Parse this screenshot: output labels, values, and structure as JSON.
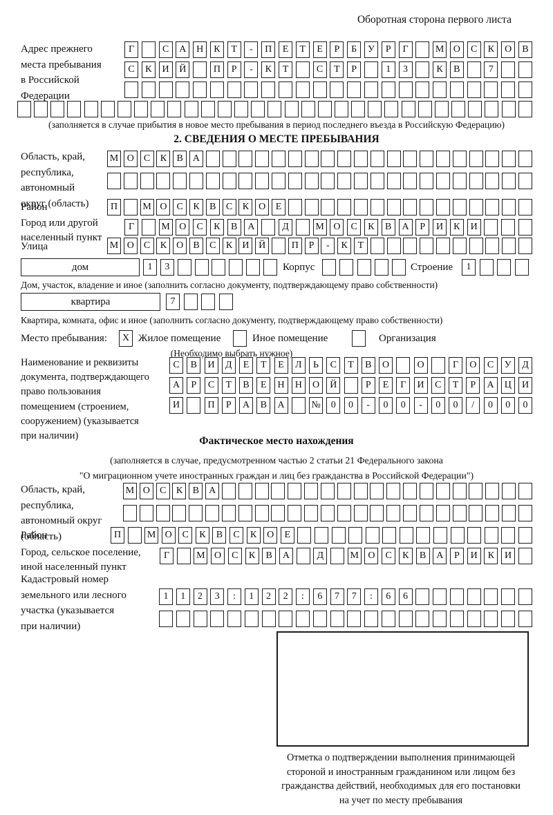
{
  "page": {
    "header_note": "Оборотная сторона первого листа"
  },
  "prev_address": {
    "label_lines": [
      "Адрес прежнего",
      "места пребывания",
      "в Российской",
      "Федерации"
    ],
    "rows": [
      [
        "Г",
        "",
        "С",
        "А",
        "Н",
        "К",
        "Т",
        "-",
        "П",
        "Е",
        "Т",
        "Е",
        "Р",
        "Б",
        "У",
        "Р",
        "Г",
        "",
        "М",
        "О",
        "С",
        "К",
        "О",
        "В"
      ],
      [
        "С",
        "К",
        "И",
        "Й",
        "",
        "П",
        "Р",
        "-",
        "К",
        "Т",
        "",
        "С",
        "Т",
        "Р",
        "",
        "1",
        "3",
        "",
        "К",
        "В",
        "",
        "7",
        "",
        ""
      ],
      [
        "",
        "",
        "",
        "",
        "",
        "",
        "",
        "",
        "",
        "",
        "",
        "",
        "",
        "",
        "",
        "",
        "",
        "",
        "",
        "",
        "",
        "",
        "",
        ""
      ]
    ],
    "full_row": [
      "",
      "",
      "",
      "",
      "",
      "",
      "",
      "",
      "",
      "",
      "",
      "",
      "",
      "",
      "",
      "",
      "",
      "",
      "",
      "",
      "",
      "",
      "",
      "",
      "",
      "",
      "",
      "",
      "",
      "",
      ""
    ],
    "note": "(заполняется в случае прибытия в новое место пребывания в период последнего въезда в Российскую Федерацию)"
  },
  "section2": {
    "title": "2. СВЕДЕНИЯ О МЕСТЕ ПРЕБЫВАНИЯ",
    "region": {
      "label_lines": [
        "Область, край,",
        "республика,",
        "автономный",
        "округ (область)"
      ],
      "rows": [
        [
          "М",
          "О",
          "С",
          "К",
          "В",
          "А",
          "",
          "",
          "",
          "",
          "",
          "",
          "",
          "",
          "",
          "",
          "",
          "",
          "",
          "",
          "",
          "",
          "",
          "",
          "",
          ""
        ],
        [
          "",
          "",
          "",
          "",
          "",
          "",
          "",
          "",
          "",
          "",
          "",
          "",
          "",
          "",
          "",
          "",
          "",
          "",
          "",
          "",
          "",
          "",
          "",
          "",
          "",
          ""
        ]
      ]
    },
    "district": {
      "label": "Район",
      "row": [
        "П",
        "",
        "М",
        "О",
        "С",
        "К",
        "В",
        "С",
        "К",
        "О",
        "Е",
        "",
        "",
        "",
        "",
        "",
        "",
        "",
        "",
        "",
        "",
        "",
        "",
        "",
        "",
        ""
      ]
    },
    "city": {
      "label_lines": [
        "Город или другой",
        "населенный пункт"
      ],
      "row": [
        "Г",
        "",
        "М",
        "О",
        "С",
        "К",
        "В",
        "А",
        "",
        "Д",
        "",
        "М",
        "О",
        "С",
        "К",
        "В",
        "А",
        "Р",
        "И",
        "К",
        "И",
        "",
        "",
        ""
      ]
    },
    "street": {
      "label": "Улица",
      "row": [
        "М",
        "О",
        "С",
        "К",
        "О",
        "В",
        "С",
        "К",
        "И",
        "Й",
        "",
        "П",
        "Р",
        "-",
        "К",
        "Т",
        "",
        "",
        "",
        "",
        "",
        "",
        "",
        "",
        "",
        ""
      ]
    },
    "house": {
      "label": "дом",
      "cells": [
        "1",
        "3",
        "",
        "",
        "",
        "",
        "",
        ""
      ],
      "korpus_label": "Корпус",
      "korpus_cells": [
        "",
        "",
        "",
        "",
        ""
      ],
      "stroenie_label": "Строение",
      "stroenie_cells": [
        "1",
        "",
        "",
        ""
      ],
      "note": "Дом, участок, владение и иное (заполнить согласно документу, подтверждающему право собственности)"
    },
    "apartment": {
      "label": "квартира",
      "cells": [
        "7",
        "",
        "",
        ""
      ],
      "note": "Квартира, комната, офис и иное (заполнить согласно документу, подтверждающему право собственности)"
    },
    "stay_type": {
      "label": "Место пребывания:",
      "options": [
        {
          "label": "Жилое помещение",
          "mark": "X"
        },
        {
          "label": "Иное помещение",
          "mark": ""
        },
        {
          "label": "Организация",
          "mark": ""
        }
      ],
      "note": "(Необходимо выбрать нужное)"
    },
    "document": {
      "label_lines": [
        "Наименование и реквизиты",
        "документа, подтверждающего",
        "право пользования",
        "помещением (строением,",
        "сооружением) (указывается",
        "при наличии)"
      ],
      "rows": [
        [
          "С",
          "В",
          "И",
          "Д",
          "Е",
          "Т",
          "Е",
          "Л",
          "Ь",
          "С",
          "Т",
          "В",
          "О",
          "",
          "О",
          "",
          "Г",
          "О",
          "С",
          "У",
          "Д"
        ],
        [
          "А",
          "Р",
          "С",
          "Т",
          "В",
          "Е",
          "Н",
          "Н",
          "О",
          "Й",
          "",
          "Р",
          "Е",
          "Г",
          "И",
          "С",
          "Т",
          "Р",
          "А",
          "Ц",
          "И"
        ],
        [
          "И",
          "",
          "П",
          "Р",
          "А",
          "В",
          "А",
          "",
          "№",
          "0",
          "0",
          "-",
          "0",
          "0",
          "-",
          "0",
          "0",
          "/",
          "0",
          "0",
          "0"
        ]
      ]
    }
  },
  "actual_location": {
    "title": "Фактическое место нахождения",
    "note_lines": [
      "(заполняется в случае, предусмотренном частью 2 статьи 21 Федерального закона",
      "\"О миграционном учете иностранных граждан и лиц без гражданства в Российской Федерации\")"
    ],
    "region": {
      "label_lines": [
        "Область, край,",
        "республика,",
        "автономный округ",
        "(область)"
      ],
      "rows": [
        [
          "М",
          "О",
          "С",
          "К",
          "В",
          "А",
          "",
          "",
          "",
          "",
          "",
          "",
          "",
          "",
          "",
          "",
          "",
          "",
          "",
          "",
          "",
          "",
          "",
          "",
          ""
        ],
        [
          "",
          "",
          "",
          "",
          "",
          "",
          "",
          "",
          "",
          "",
          "",
          "",
          "",
          "",
          "",
          "",
          "",
          "",
          "",
          "",
          "",
          "",
          "",
          "",
          ""
        ]
      ]
    },
    "district": {
      "label": "Район",
      "row": [
        "П",
        "",
        "М",
        "О",
        "С",
        "К",
        "В",
        "С",
        "К",
        "О",
        "Е",
        "",
        "",
        "",
        "",
        "",
        "",
        "",
        "",
        "",
        "",
        "",
        "",
        "",
        ""
      ]
    },
    "city": {
      "label_lines": [
        "Город, сельское поселение,",
        "иной населенный пункт"
      ],
      "row": [
        "Г",
        "",
        "М",
        "О",
        "С",
        "К",
        "В",
        "А",
        "",
        "Д",
        "",
        "М",
        "О",
        "С",
        "К",
        "В",
        "А",
        "Р",
        "И",
        "К",
        "И",
        ""
      ]
    },
    "cadastral": {
      "label_lines": [
        "Кадастровый номер",
        "земельного или лесного",
        "участка (указывается",
        "при наличии)"
      ],
      "rows": [
        [
          "1",
          "1",
          "2",
          "3",
          ":",
          "1",
          "2",
          "2",
          ":",
          "6",
          "7",
          "7",
          ":",
          "6",
          "6",
          "",
          "",
          "",
          "",
          "",
          "",
          ""
        ],
        [
          "",
          "",
          "",
          "",
          "",
          "",
          "",
          "",
          "",
          "",
          "",
          "",
          "",
          "",
          "",
          "",
          "",
          "",
          "",
          "",
          "",
          ""
        ]
      ]
    },
    "stamp_caption_lines": [
      "Отметка о подтверждении выполнения принимающей",
      "стороной и иностранным гражданином или лицом без",
      "гражданства действий, необходимых для его постановки",
      "на учет по месту пребывания"
    ]
  }
}
